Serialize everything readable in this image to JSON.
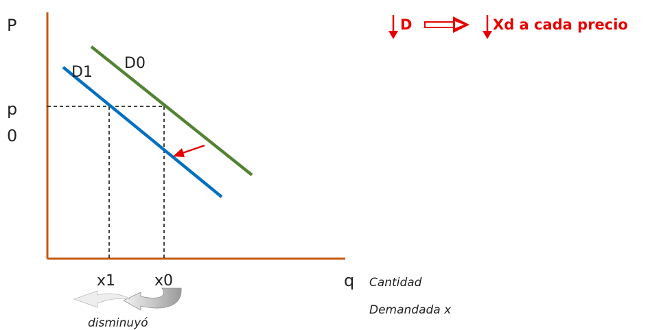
{
  "axes": {
    "y_label": "P",
    "x_label": "q",
    "price_label_line1": "p",
    "price_label_line2": "0",
    "tick_x1": "x1",
    "tick_x0": "x0"
  },
  "curves": {
    "d0_label": "D0",
    "d1_label": "D1",
    "d0_color": "#548235",
    "d1_color": "#0070c0"
  },
  "axis_color": "#c55a11",
  "accent_color": "#e60000",
  "header": {
    "left_text": "D",
    "right_text": "Xd a cada precio"
  },
  "annotations": {
    "x_title_line1": "Cantidad",
    "x_title_line2": "Demandada x",
    "shift_caption": "disminuyó"
  }
}
